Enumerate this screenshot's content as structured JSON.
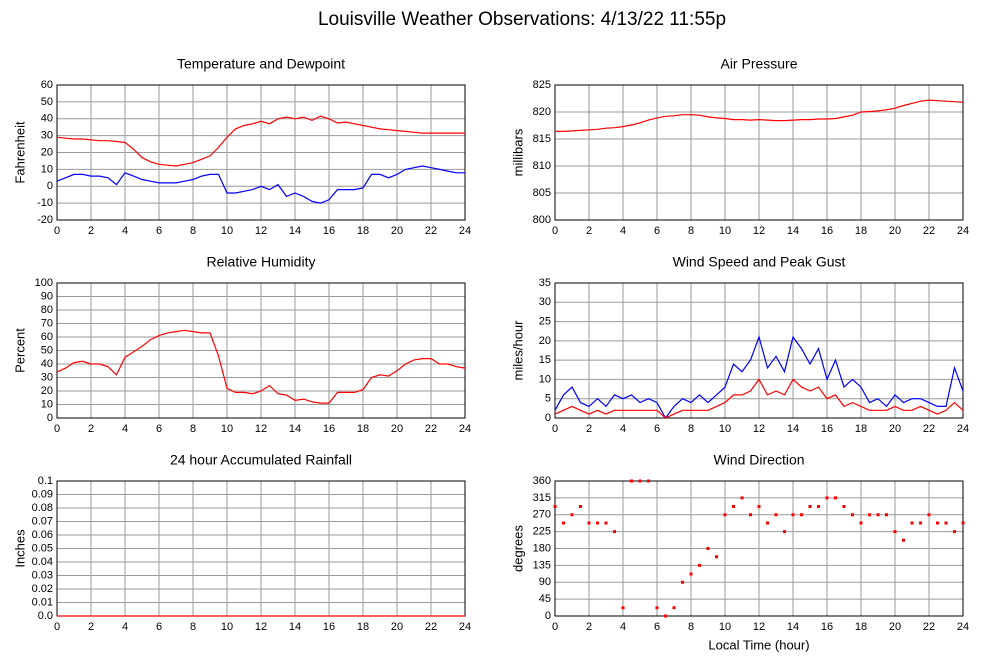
{
  "title": "Louisville Weather Observations: 4/13/22 11:55p",
  "chart_data": [
    {
      "type": "line",
      "title": "Temperature and Dewpoint",
      "ylabel": "Fahrenheit",
      "x": [
        0,
        0.5,
        1,
        1.5,
        2,
        2.5,
        3,
        3.5,
        4,
        4.5,
        5,
        5.5,
        6,
        6.5,
        7,
        7.5,
        8,
        8.5,
        9,
        9.5,
        10,
        10.5,
        11,
        11.5,
        12,
        12.5,
        13,
        13.5,
        14,
        14.5,
        15,
        15.5,
        16,
        16.5,
        17,
        17.5,
        18,
        18.5,
        19,
        19.5,
        20,
        20.5,
        21,
        21.5,
        22,
        22.5,
        23,
        23.5,
        24
      ],
      "series": [
        {
          "name": "Temperature",
          "color": "#ff0000",
          "values": [
            29,
            28.5,
            28,
            28,
            27.5,
            27,
            27,
            26.5,
            26,
            22,
            17,
            14.5,
            13,
            12.5,
            12,
            13,
            14,
            16,
            18,
            23,
            29,
            34,
            36,
            37,
            38.5,
            37,
            40,
            41,
            40,
            41,
            39,
            41.5,
            40,
            37.5,
            38,
            37,
            36,
            35,
            34,
            33.5,
            33,
            32.5,
            32,
            31.5,
            31.5,
            31.5,
            31.5,
            31.5,
            31.5
          ]
        },
        {
          "name": "Dewpoint",
          "color": "#0000ff",
          "values": [
            3,
            5,
            7,
            7,
            6,
            6,
            5,
            1,
            8,
            6,
            4,
            3,
            2,
            2,
            2,
            3,
            4,
            6,
            7,
            7,
            -4,
            -4,
            -3,
            -2,
            0,
            -2,
            1,
            -6,
            -4,
            -6,
            -9,
            -10,
            -8,
            -2,
            -2,
            -2,
            -1,
            7,
            7,
            5,
            7,
            10,
            11,
            12,
            11,
            10,
            9,
            8,
            8
          ]
        }
      ],
      "xlim": [
        0,
        24
      ],
      "xticks": [
        0,
        2,
        4,
        6,
        8,
        10,
        12,
        14,
        16,
        18,
        20,
        22,
        24
      ],
      "ylim": [
        -20,
        60
      ],
      "yticks": [
        -20,
        -10,
        0,
        10,
        20,
        30,
        40,
        50,
        60
      ],
      "grid": true
    },
    {
      "type": "line",
      "title": "Air Pressure",
      "ylabel": "millibars",
      "x": [
        0,
        0.5,
        1,
        1.5,
        2,
        2.5,
        3,
        3.5,
        4,
        4.5,
        5,
        5.5,
        6,
        6.5,
        7,
        7.5,
        8,
        8.5,
        9,
        9.5,
        10,
        10.5,
        11,
        11.5,
        12,
        12.5,
        13,
        13.5,
        14,
        14.5,
        15,
        15.5,
        16,
        16.5,
        17,
        17.5,
        18,
        18.5,
        19,
        19.5,
        20,
        20.5,
        21,
        21.5,
        22,
        22.5,
        23,
        23.5,
        24
      ],
      "series": [
        {
          "name": "Pressure",
          "color": "#ff0000",
          "values": [
            816.4,
            816.4,
            816.5,
            816.6,
            816.7,
            816.8,
            817,
            817.1,
            817.3,
            817.6,
            818,
            818.5,
            818.9,
            819.2,
            819.3,
            819.5,
            819.5,
            819.4,
            819.1,
            818.9,
            818.8,
            818.6,
            818.6,
            818.5,
            818.6,
            818.5,
            818.4,
            818.4,
            818.5,
            818.6,
            818.6,
            818.7,
            818.7,
            818.8,
            819.1,
            819.4,
            820,
            820.1,
            820.2,
            820.4,
            820.7,
            821.2,
            821.6,
            822,
            822.2,
            822.1,
            822,
            821.9,
            821.8
          ]
        }
      ],
      "xlim": [
        0,
        24
      ],
      "xticks": [
        0,
        2,
        4,
        6,
        8,
        10,
        12,
        14,
        16,
        18,
        20,
        22,
        24
      ],
      "ylim": [
        800,
        825
      ],
      "yticks": [
        800,
        805,
        810,
        815,
        820,
        825
      ],
      "grid": true
    },
    {
      "type": "line",
      "title": "Relative Humidity",
      "ylabel": "Percent",
      "x": [
        0,
        0.5,
        1,
        1.5,
        2,
        2.5,
        3,
        3.5,
        4,
        4.5,
        5,
        5.5,
        6,
        6.5,
        7,
        7.5,
        8,
        8.5,
        9,
        9.5,
        10,
        10.5,
        11,
        11.5,
        12,
        12.5,
        13,
        13.5,
        14,
        14.5,
        15,
        15.5,
        16,
        16.5,
        17,
        17.5,
        18,
        18.5,
        19,
        19.5,
        20,
        20.5,
        21,
        21.5,
        22,
        22.5,
        23,
        23.5,
        24
      ],
      "series": [
        {
          "name": "Humidity",
          "color": "#ff0000",
          "values": [
            34,
            37,
            41,
            42,
            40,
            40,
            38,
            32,
            45,
            49,
            53,
            58,
            61,
            63,
            64,
            65,
            64,
            63,
            63,
            46,
            22,
            19,
            19,
            18,
            20,
            24,
            18,
            17,
            13,
            14,
            12,
            11,
            11,
            19,
            19,
            19,
            21,
            30,
            32,
            31,
            35,
            40,
            43,
            44,
            44,
            40,
            40,
            38,
            37
          ]
        }
      ],
      "xlim": [
        0,
        24
      ],
      "xticks": [
        0,
        2,
        4,
        6,
        8,
        10,
        12,
        14,
        16,
        18,
        20,
        22,
        24
      ],
      "ylim": [
        0,
        100
      ],
      "yticks": [
        0,
        10,
        20,
        30,
        40,
        50,
        60,
        70,
        80,
        90,
        100
      ],
      "grid": true
    },
    {
      "type": "line",
      "title": "Wind Speed and Peak Gust",
      "ylabel": "miles/hour",
      "x": [
        0,
        0.5,
        1,
        1.5,
        2,
        2.5,
        3,
        3.5,
        4,
        4.5,
        5,
        5.5,
        6,
        6.5,
        7,
        7.5,
        8,
        8.5,
        9,
        9.5,
        10,
        10.5,
        11,
        11.5,
        12,
        12.5,
        13,
        13.5,
        14,
        14.5,
        15,
        15.5,
        16,
        16.5,
        17,
        17.5,
        18,
        18.5,
        19,
        19.5,
        20,
        20.5,
        21,
        21.5,
        22,
        22.5,
        23,
        23.5,
        24
      ],
      "series": [
        {
          "name": "Peak Gust",
          "color": "#0000ff",
          "values": [
            2,
            6,
            8,
            4,
            3,
            5,
            3,
            6,
            5,
            6,
            4,
            5,
            4,
            0,
            3,
            5,
            4,
            6,
            4,
            6,
            8,
            14,
            12,
            15,
            21,
            13,
            16,
            12,
            21,
            18,
            14,
            18,
            10,
            15,
            8,
            10,
            8,
            4,
            5,
            3,
            6,
            4,
            5,
            5,
            4,
            3,
            3,
            13,
            7
          ]
        },
        {
          "name": "Wind Speed",
          "color": "#ff0000",
          "values": [
            1,
            2,
            3,
            2,
            1,
            2,
            1,
            2,
            2,
            2,
            2,
            2,
            2,
            0,
            1,
            2,
            2,
            2,
            2,
            3,
            4,
            6,
            6,
            7,
            10,
            6,
            7,
            6,
            10,
            8,
            7,
            8,
            5,
            6,
            3,
            4,
            3,
            2,
            2,
            2,
            3,
            2,
            2,
            3,
            2,
            1,
            2,
            4,
            2
          ]
        }
      ],
      "xlim": [
        0,
        24
      ],
      "xticks": [
        0,
        2,
        4,
        6,
        8,
        10,
        12,
        14,
        16,
        18,
        20,
        22,
        24
      ],
      "ylim": [
        0,
        35
      ],
      "yticks": [
        0,
        5,
        10,
        15,
        20,
        25,
        30,
        35
      ],
      "grid": true
    },
    {
      "type": "line",
      "title": "24 hour Accumulated Rainfall",
      "ylabel": "Inches",
      "x": [
        0,
        24
      ],
      "series": [
        {
          "name": "Rainfall",
          "color": "#ff0000",
          "values": [
            0,
            0
          ]
        }
      ],
      "xlim": [
        0,
        24
      ],
      "xticks": [
        0,
        2,
        4,
        6,
        8,
        10,
        12,
        14,
        16,
        18,
        20,
        22,
        24
      ],
      "ylim": [
        0,
        0.1
      ],
      "yticks": [
        {
          "value": 0,
          "label": "0.0"
        },
        0.01,
        0.02,
        0.03,
        0.04,
        0.05,
        0.06,
        0.07,
        0.08,
        0.09,
        0.1
      ],
      "grid": true
    },
    {
      "type": "scatter",
      "title": "Wind Direction",
      "ylabel": "degrees",
      "xlabel": "Local Time (hour)",
      "x": [
        0,
        0.5,
        1,
        1.5,
        2,
        2.5,
        3,
        3.5,
        4,
        4.5,
        5,
        5.5,
        6,
        6.5,
        7,
        7.5,
        8,
        8.5,
        9,
        9.5,
        10,
        10.5,
        11,
        11.5,
        12,
        12.5,
        13,
        13.5,
        14,
        14.5,
        15,
        15.5,
        16,
        16.5,
        17,
        17.5,
        18,
        18.5,
        19,
        19.5,
        20,
        20.5,
        21,
        21.5,
        22,
        22.5,
        23,
        23.5,
        24
      ],
      "series": [
        {
          "name": "Direction",
          "color": "#ff0000",
          "values": [
            292,
            248,
            270,
            292,
            248,
            248,
            248,
            225,
            22,
            360,
            360,
            360,
            22,
            0,
            22,
            90,
            112,
            135,
            180,
            158,
            270,
            292,
            315,
            270,
            292,
            248,
            270,
            225,
            270,
            270,
            292,
            292,
            315,
            315,
            292,
            270,
            248,
            270,
            270,
            270,
            225,
            202,
            248,
            248,
            270,
            248,
            248,
            225,
            248
          ]
        }
      ],
      "xlim": [
        0,
        24
      ],
      "xticks": [
        0,
        2,
        4,
        6,
        8,
        10,
        12,
        14,
        16,
        18,
        20,
        22,
        24
      ],
      "ylim": [
        0,
        360
      ],
      "yticks": [
        0,
        45,
        90,
        135,
        180,
        225,
        270,
        315,
        360
      ],
      "grid": true
    }
  ]
}
